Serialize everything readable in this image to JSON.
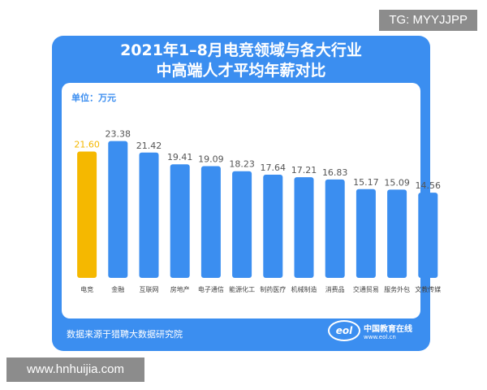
{
  "watermark_tag": "TG: MYYJJPP",
  "site_tag": "www.hnhuijia.com",
  "title_lines": [
    "2021年1–8月电竞领域与各大行业",
    "中高端人才平均年薪对比"
  ],
  "unit_label": "单位：万元",
  "source_text": "数据来源于猎聘大数据研究院",
  "logo": {
    "name": "中国教育在线",
    "url": "www.eol.cn",
    "mark": "eol"
  },
  "colors": {
    "card": "#3b8ef0",
    "bar": "#3b8ef0",
    "highlight_bar": "#f5b800",
    "highlight_label": "#f5b800"
  },
  "chart_data": {
    "type": "bar",
    "title": "2021年1–8月电竞领域与各大行业中高端人才平均年薪对比",
    "ylabel": "单位：万元",
    "ylim": [
      0,
      25
    ],
    "categories": [
      "电竞",
      "金融",
      "互联网",
      "房地产",
      "电子通信",
      "能源化工",
      "制药医疗",
      "机械制造",
      "消费品",
      "交通贸易",
      "服务外包",
      "文教传媒"
    ],
    "values": [
      21.6,
      23.38,
      21.42,
      19.41,
      19.09,
      18.23,
      17.64,
      17.21,
      16.83,
      15.17,
      15.09,
      14.56
    ],
    "value_labels": [
      "21.60",
      "23.38",
      "21.42",
      "19.41",
      "19.09",
      "18.23",
      "17.64",
      "17.21",
      "16.83",
      "15.17",
      "15.09",
      "14.56"
    ],
    "highlight_index": 0,
    "grid": false,
    "legend": "none"
  }
}
